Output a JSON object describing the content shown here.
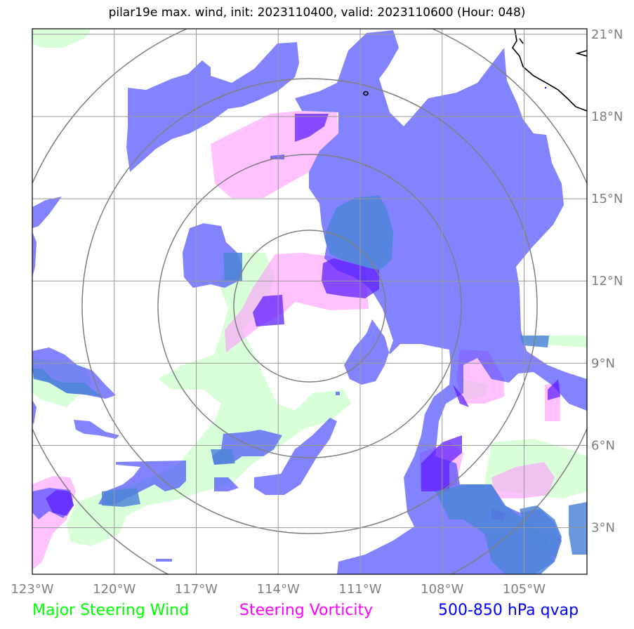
{
  "title": "pilar19e max. wind, init: 2023110400, valid: 2023110600 (Hour: 048)",
  "storm_center": {
    "lon": -112.7,
    "lat": 11.2
  },
  "map_extent": {
    "lon_min": -123.0,
    "lon_max": -102.7,
    "lat_min": 1.3,
    "lat_max": 21.2
  },
  "gridlines": {
    "lon": [
      -123,
      -120,
      -117,
      -114,
      -111,
      -108,
      -105
    ],
    "lat": [
      21,
      18,
      15,
      12,
      9,
      6,
      3
    ]
  },
  "x_tick_labels": [
    "123°W",
    "120°W",
    "117°W",
    "114°W",
    "111°W",
    "108°W",
    "105°W"
  ],
  "y_tick_labels": [
    "21°N",
    "18°N",
    "15°N",
    "12°N",
    "9°N",
    "6°N",
    "3°N"
  ],
  "legend": {
    "wind": {
      "label": "Major Steering Wind",
      "color": "#00ff00"
    },
    "vorticity": {
      "label": "Steering Vorticity",
      "color": "#ff00ff"
    },
    "qvap": {
      "label": "500-850 hPa qvap",
      "color": "#0000ff"
    }
  },
  "colors": {
    "wind_fill": "#ccffcc",
    "vorticity_fill": "#ff99ff",
    "qvap_fill": "#4040ff",
    "grid": "#999999",
    "range_rings": "#7f7f7f",
    "coastline": "#000000"
  }
}
